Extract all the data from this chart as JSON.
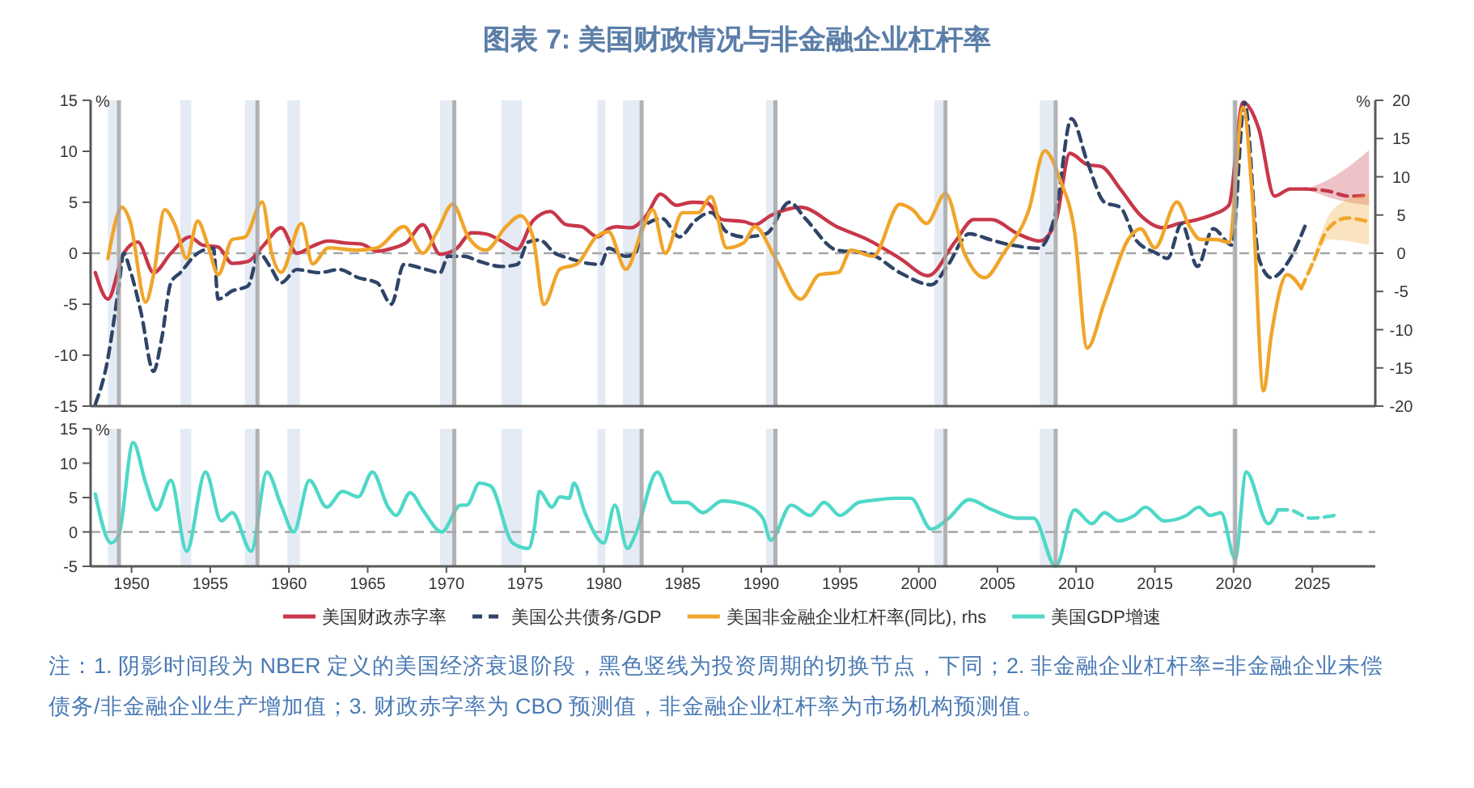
{
  "chart_data": [
    {
      "type": "line",
      "title": "图表 7: 美国财政情况与非金融企业杠杆率",
      "ylabel": "%",
      "y2label": "%",
      "xlim": [
        1947.4,
        2029
      ],
      "xticks": [
        1950,
        1955,
        1960,
        1965,
        1970,
        1975,
        1980,
        1985,
        1990,
        1995,
        2000,
        2005,
        2010,
        2015,
        2020,
        2025
      ],
      "ylim": [
        -15,
        15
      ],
      "yticks": [
        -15,
        -10,
        -5,
        0,
        5,
        10,
        15
      ],
      "y2lim": [
        -20,
        20
      ],
      "y2ticks": [
        -20,
        -15,
        -10,
        -5,
        0,
        5,
        10,
        15,
        20
      ],
      "tick_labels": "y",
      "legend": "bottom",
      "line_style": "solid",
      "marker": "none",
      "series": [
        {
          "name": "美国财政赤字率",
          "color": "#c8374a",
          "x": [
            1947.7,
            1948.5,
            1949.5,
            1950.4,
            1951.4,
            1952.5,
            1953.7,
            1954.5,
            1955.5,
            1956.4,
            1957.4,
            1958.4,
            1959.5,
            1960.5,
            1961.5,
            1962.5,
            1963.6,
            1964.6,
            1965.6,
            1966.6,
            1967.5,
            1968.5,
            1969.6,
            1970.6,
            1971.6,
            1972.5,
            1973.5,
            1974.5,
            1975.5,
            1976.6,
            1977.6,
            1978.6,
            1979.6,
            1980.3,
            1980.8,
            1981.7,
            1982.7,
            1983.6,
            1984.6,
            1985.6,
            1986.6,
            1987.5,
            1988.9,
            1989.6,
            1990.6,
            1992.5,
            1994.8,
            1996.8,
            1998.8,
            2000.6,
            2002.3,
            2003.5,
            2004.6,
            2006.3,
            2007.7,
            2008.7,
            2009.6,
            2010.7,
            2011.6,
            2012.8,
            2014.1,
            2015.5,
            2016.5,
            2017.7,
            2018.7,
            2019.7,
            2020.6,
            2021.6,
            2022.6,
            2023.6,
            2024.6
          ],
          "values": [
            -1.9,
            -4.5,
            0,
            1.1,
            -1.9,
            0,
            1.6,
            0.8,
            0.6,
            -1,
            -0.8,
            0.8,
            2.5,
            0,
            0.7,
            1.2,
            1,
            0.9,
            0.2,
            0.5,
            1.1,
            2.8,
            -0.1,
            0.4,
            2,
            1.9,
            1.2,
            0.4,
            3.2,
            4.1,
            2.8,
            2.6,
            1.6,
            2.4,
            2.6,
            2.5,
            3.7,
            5.8,
            4.7,
            5,
            4.9,
            3.3,
            3.1,
            2.8,
            3.7,
            4.5,
            2.6,
            1.3,
            -0.5,
            -2.2,
            1.1,
            3.3,
            3.3,
            1.9,
            1.2,
            3.1,
            9.8,
            8.7,
            8.5,
            6.3,
            3.7,
            2.5,
            2.9,
            3.3,
            3.8,
            4.7,
            14.8,
            12.2,
            5.6,
            6.3,
            6.3
          ]
        },
        {
          "color": "#c8374a",
          "line_style": "dashed",
          "x": [
            2024.6,
            2026,
            2027.3,
            2028.6
          ],
          "values": [
            6.3,
            6.1,
            5.6,
            5.7
          ],
          "lower": [
            6.3,
            5.5,
            5.0,
            4.7
          ],
          "upper": [
            6.3,
            7.2,
            8.5,
            10.1
          ]
        },
        {
          "name": "美国公共债务/GDP",
          "color": "#2f4468",
          "line_style": "dashed",
          "x": [
            1947.7,
            1948.4,
            1949.2,
            1949.5,
            1949.9,
            1950.6,
            1951.4,
            1951.9,
            1952.5,
            1953.1,
            1954.2,
            1955.2,
            1955.5,
            1956.4,
            1957.4,
            1958.1,
            1958.8,
            1959.5,
            1960.5,
            1961.9,
            1963.2,
            1964.4,
            1965.6,
            1966.5,
            1967.3,
            1968.5,
            1969.6,
            1970.1,
            1971.1,
            1972.1,
            1973.5,
            1974.5,
            1975.2,
            1975.9,
            1976.9,
            1977.8,
            1979.0,
            1979.8,
            1980.3,
            1981.4,
            1982.0,
            1982.5,
            1983.7,
            1984.8,
            1985.8,
            1986.8,
            1987.8,
            1988.9,
            1990.3,
            1991.8,
            1992.8,
            1994.8,
            1996.8,
            1998.8,
            2000.8,
            2001.8,
            2003.2,
            2004.6,
            2005.9,
            2007.6,
            2008.7,
            2009.7,
            2010.7,
            2011.8,
            2012.8,
            2013.8,
            2015.1,
            2015.8,
            2016.7,
            2017.7,
            2018.7,
            2019.9,
            2020.7,
            2021.6,
            2022.4,
            2023.6,
            2024.6
          ],
          "values": [
            -14.8,
            -11.1,
            -3.2,
            0,
            -1.6,
            -5.8,
            -11.6,
            -8.5,
            -2.9,
            -1.9,
            0,
            0.5,
            -4.5,
            -3.7,
            -3.2,
            0,
            -1.3,
            -2.9,
            -1.6,
            -1.9,
            -1.6,
            -2.4,
            -2.9,
            -5,
            -1.1,
            -1.5,
            -1.9,
            -0.3,
            -0.3,
            -0.8,
            -1.3,
            -1.1,
            1.1,
            1.3,
            0,
            -0.5,
            -1,
            -1.1,
            0.5,
            -0.3,
            0,
            2.6,
            3.4,
            1.6,
            3.2,
            4,
            2.1,
            1.6,
            1.9,
            5,
            3.4,
            0.3,
            0,
            -1.9,
            -3.1,
            -1.3,
            1.9,
            1.3,
            0.8,
            0.5,
            4,
            13.2,
            9,
            5,
            4.5,
            1.3,
            0,
            -0.5,
            2.9,
            -1.3,
            2.4,
            0.8,
            14.8,
            -0.5,
            -2.4,
            -0.5,
            2.9
          ]
        },
        {
          "name": "美国非金融企业杠杆率(同比), rhs",
          "color": "#f0a52a",
          "axis": "y2",
          "x": [
            1948.5,
            1949.4,
            1949.9,
            1950.9,
            1951.4,
            1952.1,
            1952.8,
            1953.5,
            1954.2,
            1954.9,
            1955.5,
            1956.4,
            1957.2,
            1958.3,
            1958.9,
            1959.5,
            1960.8,
            1961.5,
            1962.5,
            1964.3,
            1965.6,
            1967.3,
            1968.5,
            1969.4,
            1970.4,
            1971.4,
            1972.5,
            1973.8,
            1974.7,
            1975.5,
            1976.2,
            1977.2,
            1978.3,
            1979.5,
            1980.3,
            1981.4,
            1982.4,
            1983.1,
            1983.9,
            1985.0,
            1986.0,
            1986.8,
            1987.8,
            1988.9,
            1989.6,
            1990.9,
            1992.5,
            1993.7,
            1994.9,
            1995.7,
            1997.1,
            1998.8,
            1999.6,
            2000.5,
            2001.7,
            2002.9,
            2004.2,
            2005.4,
            2007.0,
            2008.0,
            2009.0,
            2009.9,
            2010.7,
            2011.8,
            2013.4,
            2014.1,
            2015.0,
            2016.4,
            2017.2,
            2017.9,
            2018.9,
            2019.7,
            2020.6,
            2021.2,
            2021.9,
            2022.4,
            2023.4,
            2024.3
          ],
          "values": [
            -0.7,
            6,
            4.2,
            -6.4,
            -2.8,
            5.7,
            3.5,
            -0.7,
            4.2,
            0.7,
            -2.8,
            1.8,
            2.1,
            6.7,
            0,
            -2.5,
            3.9,
            -1.4,
            0.7,
            0.4,
            0.7,
            3.5,
            0,
            2.8,
            6.4,
            2.1,
            0.4,
            3.5,
            4.9,
            2.1,
            -6.7,
            -2.1,
            -1.4,
            2.1,
            2.8,
            -2.1,
            2.8,
            5.7,
            0,
            5.3,
            5.3,
            7.4,
            0.7,
            1.4,
            3.5,
            -0.7,
            -6,
            -2.8,
            -2.5,
            0.4,
            -0.4,
            6.4,
            5.7,
            3.9,
            7.8,
            0,
            -3.2,
            0,
            5.7,
            13.4,
            9.5,
            2.8,
            -12.4,
            -6.4,
            2.1,
            3.2,
            0.7,
            6.7,
            3.5,
            1.8,
            1.8,
            1.4,
            19.1,
            7.1,
            -18,
            -10.6,
            -2.8,
            -4.6
          ]
        },
        {
          "color": "#f0a52a",
          "axis": "y2",
          "line_style": "dashed",
          "x": [
            2024.3,
            2025.0,
            2026.0,
            2027.2,
            2028.6
          ],
          "values": [
            -4.6,
            -1.4,
            3.2,
            4.6,
            4.1
          ],
          "lower": [
            -4.6,
            -2.0,
            1.8,
            1.6,
            1.1
          ],
          "upper": [
            -4.6,
            -0.8,
            4.8,
            7.0,
            7.8
          ]
        }
      ],
      "ref_lines": [
        {
          "axis": "y",
          "value": 0,
          "color": "#a6a6a6",
          "line_style": "dashed"
        },
        {
          "axis": "x",
          "value": 1949.2,
          "color": "#a6a6a6"
        },
        {
          "axis": "x",
          "value": 1958.0,
          "color": "#a6a6a6"
        },
        {
          "axis": "x",
          "value": 1970.5,
          "color": "#a6a6a6"
        },
        {
          "axis": "x",
          "value": 1982.4,
          "color": "#a6a6a6"
        },
        {
          "axis": "x",
          "value": 1990.9,
          "color": "#a6a6a6"
        },
        {
          "axis": "x",
          "value": 2001.7,
          "color": "#a6a6a6"
        },
        {
          "axis": "x",
          "value": 2008.7,
          "color": "#a6a6a6"
        },
        {
          "axis": "x",
          "value": 2020.1,
          "color": "#a6a6a6"
        }
      ],
      "bands": [
        {
          "axis": "x",
          "from": 1948.5,
          "to": 1949.2,
          "color": "#e4ebf4"
        },
        {
          "axis": "x",
          "from": 1953.1,
          "to": 1953.8,
          "color": "#e4ebf4"
        },
        {
          "axis": "x",
          "from": 1957.2,
          "to": 1958.0,
          "color": "#e4ebf4"
        },
        {
          "axis": "x",
          "from": 1959.9,
          "to": 1960.7,
          "color": "#e4ebf4"
        },
        {
          "axis": "x",
          "from": 1969.6,
          "to": 1970.4,
          "color": "#e4ebf4"
        },
        {
          "axis": "x",
          "from": 1973.5,
          "to": 1974.8,
          "color": "#e4ebf4"
        },
        {
          "axis": "x",
          "from": 1979.6,
          "to": 1980.1,
          "color": "#e4ebf4"
        },
        {
          "axis": "x",
          "from": 1981.2,
          "to": 1982.3,
          "color": "#e4ebf4"
        },
        {
          "axis": "x",
          "from": 1990.3,
          "to": 1991.0,
          "color": "#e4ebf4"
        },
        {
          "axis": "x",
          "from": 2001.0,
          "to": 2001.7,
          "color": "#e4ebf4"
        },
        {
          "axis": "x",
          "from": 2007.7,
          "to": 2008.6,
          "color": "#e4ebf4"
        },
        {
          "axis": "x",
          "from": 2019.9,
          "to": 2020.2,
          "color": "#e4ebf4"
        }
      ]
    },
    {
      "type": "line",
      "ylabel": "%",
      "xlim": [
        1947.4,
        2029
      ],
      "xticks": [
        1950,
        1955,
        1960,
        1965,
        1970,
        1975,
        1980,
        1985,
        1990,
        1995,
        2000,
        2005,
        2010,
        2015,
        2020,
        2025
      ],
      "ylim": [
        -5,
        15
      ],
      "yticks": [
        -5,
        0,
        5,
        10,
        15
      ],
      "legend": "bottom",
      "line_style": "solid",
      "marker": "none",
      "series": [
        {
          "name": "美国GDP增速",
          "color": "#4fd8c8",
          "x": [
            1947.7,
            1948.7,
            1949.2,
            1950.1,
            1950.9,
            1951.6,
            1952.5,
            1953.5,
            1954.7,
            1955.7,
            1956.4,
            1957.6,
            1958.6,
            1959.5,
            1960.3,
            1961.3,
            1962.4,
            1963.4,
            1964.4,
            1965.3,
            1966.3,
            1966.8,
            1967.7,
            1968.5,
            1969.7,
            1970.9,
            1971.3,
            1972.1,
            1972.8,
            1974.2,
            1975.2,
            1975.6,
            1975.9,
            1976.7,
            1977.2,
            1977.8,
            1978.1,
            1978.8,
            1980.0,
            1980.7,
            1981.5,
            1982.0,
            1983.4,
            1984.4,
            1985.3,
            1986.3,
            1987.5,
            1988.9,
            1990.1,
            1990.6,
            1991.9,
            1993.1,
            1994.0,
            1995.0,
            1996.2,
            1997.1,
            1998.5,
            1999.5,
            2000.8,
            2001.9,
            2003.2,
            2004.6,
            2006.3,
            2007.3,
            2008.7,
            2009.9,
            2011.0,
            2011.8,
            2012.7,
            2013.7,
            2014.4,
            2015.6,
            2017.0,
            2017.8,
            2018.5,
            2019.2,
            2020.1,
            2020.8,
            2022.2,
            2022.8
          ],
          "values": [
            5.5,
            -1.6,
            -0.4,
            13,
            7.1,
            3.2,
            7.5,
            -2.8,
            8.7,
            1.6,
            2.8,
            -2.8,
            8.7,
            3.9,
            0,
            7.5,
            3.6,
            5.9,
            5.1,
            8.7,
            3.6,
            2.4,
            5.7,
            3.2,
            0,
            3.9,
            3.9,
            7.1,
            6.7,
            -1.6,
            -2.4,
            0.8,
            5.9,
            3.6,
            5.1,
            4.9,
            7.1,
            2.8,
            -1.6,
            3.9,
            -2.4,
            -0.4,
            8.7,
            4.3,
            4.3,
            2.8,
            4.5,
            4,
            2,
            -1.2,
            3.9,
            2.4,
            4.3,
            2.4,
            4.3,
            4.6,
            4.9,
            4.9,
            0.4,
            2,
            4.7,
            3.3,
            2,
            2,
            -5,
            3.2,
            1.2,
            2.8,
            1.6,
            2.4,
            3.6,
            1.6,
            2.4,
            3.6,
            2.4,
            2.8,
            -3.9,
            8.7,
            1.2,
            3.2
          ]
        },
        {
          "color": "#4fd8c8",
          "line_style": "dashed",
          "x": [
            2022.8,
            2023.5,
            2024.9,
            2026.4
          ],
          "values": [
            3.2,
            3.2,
            2.0,
            2.4
          ]
        }
      ],
      "ref_lines": [
        {
          "axis": "y",
          "value": 0,
          "color": "#a6a6a6",
          "line_style": "dashed"
        },
        {
          "axis": "x",
          "value": 1949.2,
          "color": "#a6a6a6"
        },
        {
          "axis": "x",
          "value": 1958.0,
          "color": "#a6a6a6"
        },
        {
          "axis": "x",
          "value": 1970.5,
          "color": "#a6a6a6"
        },
        {
          "axis": "x",
          "value": 1982.4,
          "color": "#a6a6a6"
        },
        {
          "axis": "x",
          "value": 1990.9,
          "color": "#a6a6a6"
        },
        {
          "axis": "x",
          "value": 2001.7,
          "color": "#a6a6a6"
        },
        {
          "axis": "x",
          "value": 2008.7,
          "color": "#a6a6a6"
        },
        {
          "axis": "x",
          "value": 2020.1,
          "color": "#a6a6a6"
        }
      ],
      "bands": [
        {
          "axis": "x",
          "from": 1948.5,
          "to": 1949.2,
          "color": "#e4ebf4"
        },
        {
          "axis": "x",
          "from": 1953.1,
          "to": 1953.8,
          "color": "#e4ebf4"
        },
        {
          "axis": "x",
          "from": 1957.2,
          "to": 1958.0,
          "color": "#e4ebf4"
        },
        {
          "axis": "x",
          "from": 1959.9,
          "to": 1960.7,
          "color": "#e4ebf4"
        },
        {
          "axis": "x",
          "from": 1969.6,
          "to": 1970.4,
          "color": "#e4ebf4"
        },
        {
          "axis": "x",
          "from": 1973.5,
          "to": 1974.8,
          "color": "#e4ebf4"
        },
        {
          "axis": "x",
          "from": 1979.6,
          "to": 1980.1,
          "color": "#e4ebf4"
        },
        {
          "axis": "x",
          "from": 1981.2,
          "to": 1982.3,
          "color": "#e4ebf4"
        },
        {
          "axis": "x",
          "from": 1990.3,
          "to": 1991.0,
          "color": "#e4ebf4"
        },
        {
          "axis": "x",
          "from": 2001.0,
          "to": 2001.7,
          "color": "#e4ebf4"
        },
        {
          "axis": "x",
          "from": 2007.7,
          "to": 2008.6,
          "color": "#e4ebf4"
        },
        {
          "axis": "x",
          "from": 2019.9,
          "to": 2020.2,
          "color": "#e4ebf4"
        }
      ],
      "annotations": [
        "注：1. 阴影时间段为 NBER 定义的美国经济衰退阶段，黑色竖线为投资周期的切换节点，下同；2. 非金融企业杠杆率=非金融企业未偿债务/非金融企业生产增加值；3. 财政赤字率为 CBO 预测值，非金融企业杠杆率为市场机构预测值。"
      ]
    }
  ]
}
